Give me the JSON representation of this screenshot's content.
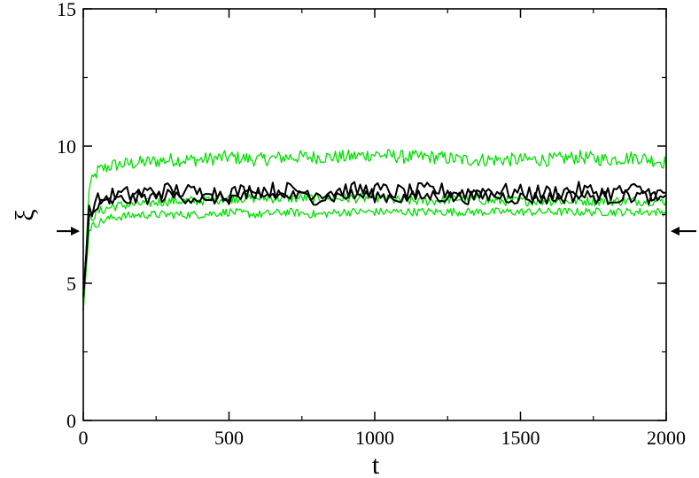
{
  "chart_data": {
    "type": "line",
    "xlabel": "t",
    "ylabel": "ξ",
    "xlim": [
      0,
      2000
    ],
    "ylim": [
      0,
      15
    ],
    "x_ticks": [
      0,
      500,
      1000,
      1500,
      2000
    ],
    "x_tick_labels": [
      "0",
      "500",
      "1000",
      "1500",
      "2000"
    ],
    "y_ticks": [
      0,
      5,
      10,
      15
    ],
    "y_tick_labels": [
      "0",
      "5",
      "10",
      "15"
    ],
    "grid": false,
    "legend": "none",
    "reference_arrows": {
      "y": 6.9,
      "sides": [
        "left",
        "right"
      ]
    },
    "series_colors": {
      "green": "#00e000",
      "black": "#000000"
    },
    "series": [
      {
        "color": "green",
        "x": [
          0,
          20,
          50,
          100,
          200,
          300,
          400,
          500,
          600,
          700,
          800,
          900,
          1000,
          1100,
          1200,
          1300,
          1400,
          1500,
          1600,
          1700,
          1800,
          1900,
          2000
        ],
        "y": [
          4.0,
          8.5,
          9.1,
          9.3,
          9.4,
          9.5,
          9.5,
          9.6,
          9.5,
          9.6,
          9.6,
          9.6,
          9.7,
          9.6,
          9.6,
          9.5,
          9.5,
          9.5,
          9.5,
          9.6,
          9.5,
          9.6,
          9.4
        ],
        "noise": 0.25
      },
      {
        "color": "green",
        "x": [
          0,
          20,
          50,
          100,
          200,
          300,
          400,
          500,
          600,
          700,
          800,
          900,
          1000,
          1100,
          1200,
          1300,
          1400,
          1500,
          1600,
          1700,
          1800,
          1900,
          2000
        ],
        "y": [
          4.0,
          7.3,
          7.6,
          7.8,
          7.9,
          8.0,
          8.0,
          8.1,
          8.1,
          8.1,
          8.1,
          8.1,
          8.1,
          8.0,
          8.0,
          8.1,
          8.0,
          8.0,
          8.0,
          8.0,
          8.0,
          8.0,
          8.0
        ],
        "noise": 0.18
      },
      {
        "color": "green",
        "x": [
          0,
          20,
          50,
          100,
          200,
          300,
          400,
          500,
          600,
          700,
          800,
          900,
          1000,
          1100,
          1200,
          1300,
          1400,
          1500,
          1600,
          1700,
          1800,
          1900,
          2000
        ],
        "y": [
          4.0,
          7.0,
          7.2,
          7.4,
          7.5,
          7.5,
          7.5,
          7.6,
          7.5,
          7.6,
          7.5,
          7.6,
          7.6,
          7.6,
          7.6,
          7.6,
          7.6,
          7.6,
          7.6,
          7.6,
          7.6,
          7.6,
          7.6
        ],
        "noise": 0.15
      },
      {
        "color": "black",
        "x": [
          0,
          20,
          50,
          100,
          200,
          300,
          400,
          500,
          600,
          700,
          800,
          900,
          1000,
          1100,
          1200,
          1300,
          1400,
          1500,
          1600,
          1700,
          1800,
          1900,
          2000
        ],
        "y": [
          4.5,
          7.6,
          8.0,
          8.2,
          8.3,
          8.4,
          8.3,
          8.3,
          8.4,
          8.4,
          8.3,
          8.4,
          8.4,
          8.3,
          8.4,
          8.3,
          8.4,
          8.3,
          8.3,
          8.4,
          8.3,
          8.4,
          8.2
        ],
        "noise": 0.3
      },
      {
        "color": "black",
        "x": [
          0,
          20,
          50,
          100,
          200,
          300,
          400,
          500,
          600,
          700,
          800,
          900,
          1000,
          1100,
          1200,
          1300,
          1400,
          1500,
          1600,
          1700,
          1800,
          1900,
          2000
        ],
        "y": [
          4.5,
          7.4,
          7.8,
          8.0,
          8.1,
          8.2,
          8.1,
          8.1,
          8.2,
          8.2,
          8.1,
          8.2,
          8.2,
          8.1,
          8.2,
          8.1,
          8.2,
          8.1,
          8.1,
          8.2,
          8.1,
          8.2,
          8.0
        ],
        "noise": 0.25
      }
    ]
  }
}
